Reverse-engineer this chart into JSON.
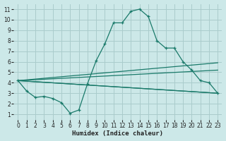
{
  "xlabel": "Humidex (Indice chaleur)",
  "bg_color": "#cce8e8",
  "grid_color": "#aacccc",
  "line_color": "#1a7a6a",
  "xlim": [
    -0.5,
    23.5
  ],
  "ylim": [
    0.5,
    11.5
  ],
  "xticks": [
    0,
    1,
    2,
    3,
    4,
    5,
    6,
    7,
    8,
    9,
    10,
    11,
    12,
    13,
    14,
    15,
    16,
    17,
    18,
    19,
    20,
    21,
    22,
    23
  ],
  "yticks": [
    1,
    2,
    3,
    4,
    5,
    6,
    7,
    8,
    9,
    10,
    11
  ],
  "main_x": [
    0,
    1,
    2,
    3,
    4,
    5,
    6,
    7,
    8,
    9,
    10,
    11,
    12,
    13,
    14,
    15,
    16,
    17,
    18,
    19,
    20,
    21,
    22,
    23
  ],
  "main_y": [
    4.2,
    3.2,
    2.6,
    2.7,
    2.5,
    2.1,
    1.1,
    1.4,
    3.9,
    6.1,
    7.7,
    9.7,
    9.7,
    10.8,
    11.0,
    10.3,
    8.0,
    7.3,
    7.3,
    6.0,
    5.2,
    4.2,
    4.0,
    3.0
  ],
  "line1_x": [
    0,
    23
  ],
  "line1_y": [
    4.2,
    3.0
  ],
  "line2_x": [
    0,
    23
  ],
  "line2_y": [
    4.2,
    3.0
  ],
  "line3_x": [
    0,
    23
  ],
  "line3_y": [
    4.2,
    5.2
  ],
  "line4_x": [
    0,
    23
  ],
  "line4_y": [
    4.2,
    5.9
  ]
}
